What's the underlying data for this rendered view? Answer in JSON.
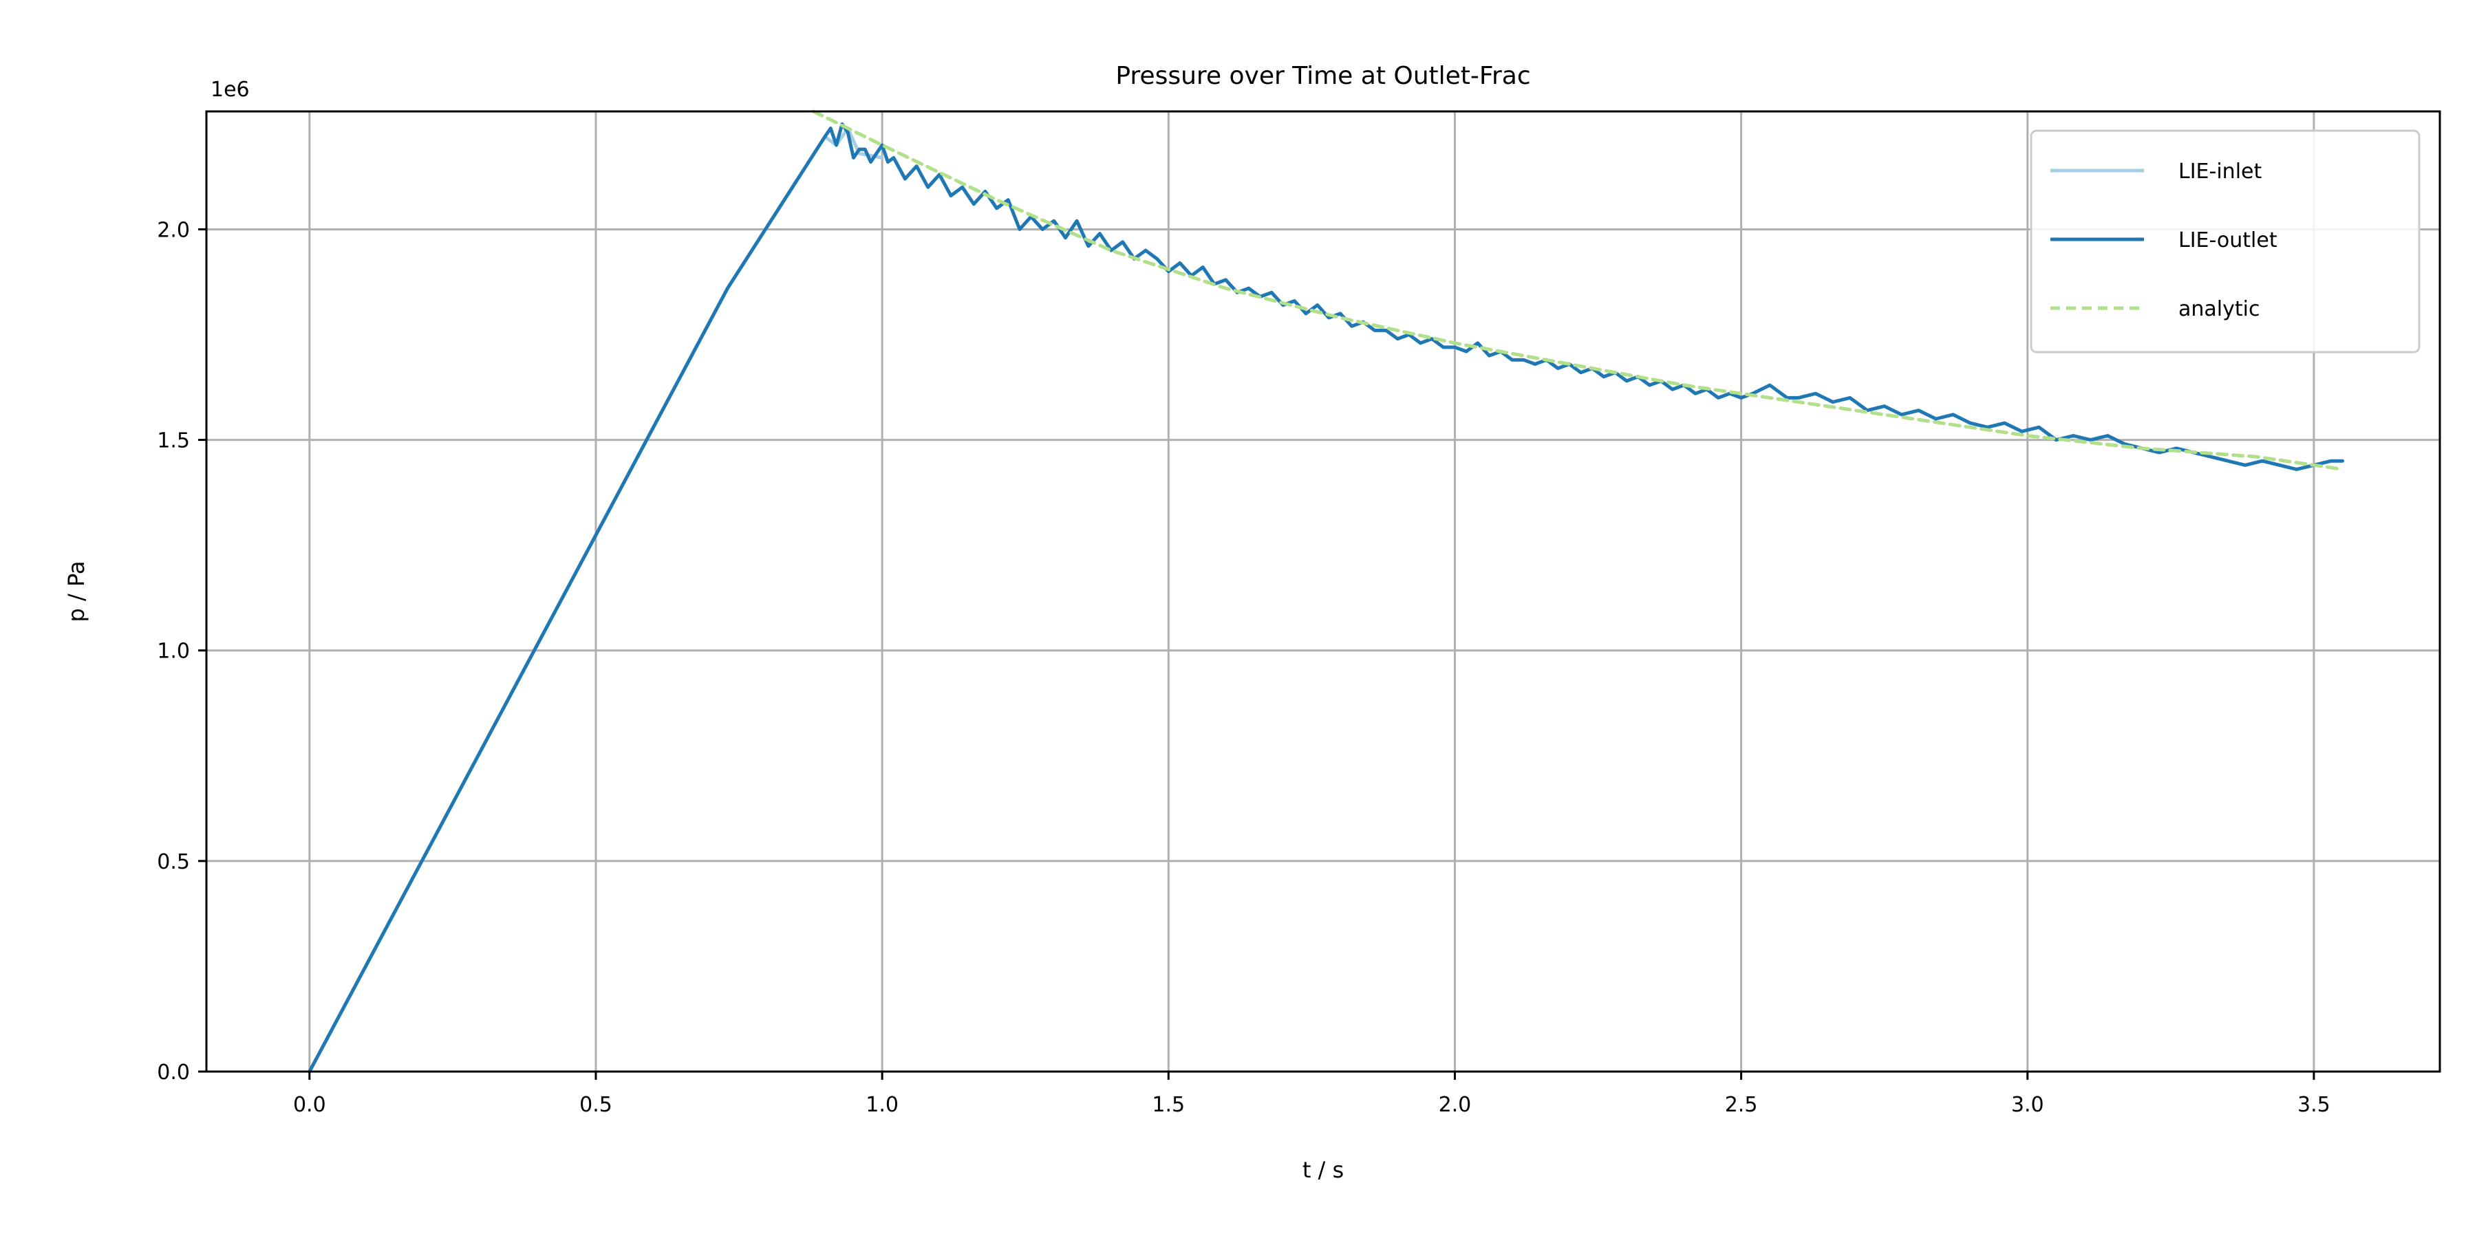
{
  "chart_data": {
    "type": "line",
    "title": "Pressure over Time at Outlet-Frac",
    "xlabel": "t / s",
    "ylabel": "p / Pa",
    "y_offset_text": "1e6",
    "xlim": [
      -0.18,
      3.72
    ],
    "ylim": [
      0.0,
      2.28
    ],
    "x_ticks": [
      0.0,
      0.5,
      1.0,
      1.5,
      2.0,
      2.5,
      3.0,
      3.5
    ],
    "x_tick_labels": [
      "0.0",
      "0.5",
      "1.0",
      "1.5",
      "2.0",
      "2.5",
      "3.0",
      "3.5"
    ],
    "y_ticks": [
      0.0,
      0.5,
      1.0,
      1.5,
      2.0
    ],
    "y_tick_labels": [
      "0.0",
      "0.5",
      "1.0",
      "1.5",
      "2.0"
    ],
    "grid": true,
    "legend_position": "top-right",
    "y_unit_scale": 1000000,
    "series": [
      {
        "name": "LIE-inlet",
        "color": "#a6cee3",
        "style": "solid",
        "x": [
          0.0,
          0.73,
          0.9,
          0.92,
          0.94,
          0.96,
          1.0
        ],
        "y": [
          0.0,
          1.86,
          2.22,
          2.2,
          2.24,
          2.18,
          2.17
        ]
      },
      {
        "name": "LIE-outlet",
        "color": "#1f78b4",
        "style": "solid",
        "x": [
          0.0,
          0.73,
          0.9,
          0.91,
          0.92,
          0.93,
          0.94,
          0.95,
          0.96,
          0.97,
          0.98,
          0.99,
          1.0,
          1.01,
          1.02,
          1.04,
          1.06,
          1.08,
          1.1,
          1.12,
          1.14,
          1.16,
          1.18,
          1.2,
          1.22,
          1.24,
          1.26,
          1.28,
          1.3,
          1.32,
          1.34,
          1.36,
          1.38,
          1.4,
          1.42,
          1.44,
          1.46,
          1.48,
          1.5,
          1.52,
          1.54,
          1.56,
          1.58,
          1.6,
          1.62,
          1.64,
          1.66,
          1.68,
          1.7,
          1.72,
          1.74,
          1.76,
          1.78,
          1.8,
          1.82,
          1.84,
          1.86,
          1.88,
          1.9,
          1.92,
          1.94,
          1.96,
          1.98,
          2.0,
          2.02,
          2.04,
          2.06,
          2.08,
          2.1,
          2.12,
          2.14,
          2.16,
          2.18,
          2.2,
          2.22,
          2.24,
          2.26,
          2.28,
          2.3,
          2.32,
          2.34,
          2.36,
          2.38,
          2.4,
          2.42,
          2.44,
          2.46,
          2.48,
          2.5,
          2.52,
          2.55,
          2.58,
          2.6,
          2.63,
          2.66,
          2.69,
          2.72,
          2.75,
          2.78,
          2.81,
          2.84,
          2.87,
          2.9,
          2.93,
          2.96,
          2.99,
          3.02,
          3.05,
          3.08,
          3.11,
          3.14,
          3.17,
          3.2,
          3.23,
          3.26,
          3.29,
          3.32,
          3.35,
          3.38,
          3.41,
          3.44,
          3.47,
          3.5,
          3.53,
          3.55
        ],
        "y": [
          0.0,
          1.86,
          2.22,
          2.24,
          2.2,
          2.25,
          2.23,
          2.17,
          2.19,
          2.19,
          2.16,
          2.18,
          2.2,
          2.16,
          2.17,
          2.12,
          2.15,
          2.1,
          2.13,
          2.08,
          2.1,
          2.06,
          2.09,
          2.05,
          2.07,
          2.0,
          2.03,
          2.0,
          2.02,
          1.98,
          2.02,
          1.96,
          1.99,
          1.95,
          1.97,
          1.93,
          1.95,
          1.93,
          1.9,
          1.92,
          1.89,
          1.91,
          1.87,
          1.88,
          1.85,
          1.86,
          1.84,
          1.85,
          1.82,
          1.83,
          1.8,
          1.82,
          1.79,
          1.8,
          1.77,
          1.78,
          1.76,
          1.76,
          1.74,
          1.75,
          1.73,
          1.74,
          1.72,
          1.72,
          1.71,
          1.73,
          1.7,
          1.71,
          1.69,
          1.69,
          1.68,
          1.69,
          1.67,
          1.68,
          1.66,
          1.67,
          1.65,
          1.66,
          1.64,
          1.65,
          1.63,
          1.64,
          1.62,
          1.63,
          1.61,
          1.62,
          1.6,
          1.61,
          1.6,
          1.61,
          1.63,
          1.6,
          1.6,
          1.61,
          1.59,
          1.6,
          1.57,
          1.58,
          1.56,
          1.57,
          1.55,
          1.56,
          1.54,
          1.53,
          1.54,
          1.52,
          1.53,
          1.5,
          1.51,
          1.5,
          1.51,
          1.49,
          1.48,
          1.47,
          1.48,
          1.47,
          1.46,
          1.45,
          1.44,
          1.45,
          1.44,
          1.43,
          1.44,
          1.45,
          1.45
        ]
      },
      {
        "name": "analytic",
        "color": "#b2df8a",
        "style": "dashed",
        "x": [
          0.88,
          1.0,
          1.2,
          1.4,
          1.6,
          1.8,
          2.0,
          2.2,
          2.4,
          2.6,
          2.8,
          3.0,
          3.2,
          3.4,
          3.55
        ],
        "y": [
          2.28,
          2.2,
          2.07,
          1.95,
          1.86,
          1.79,
          1.73,
          1.68,
          1.63,
          1.59,
          1.55,
          1.51,
          1.48,
          1.46,
          1.43
        ]
      }
    ]
  }
}
